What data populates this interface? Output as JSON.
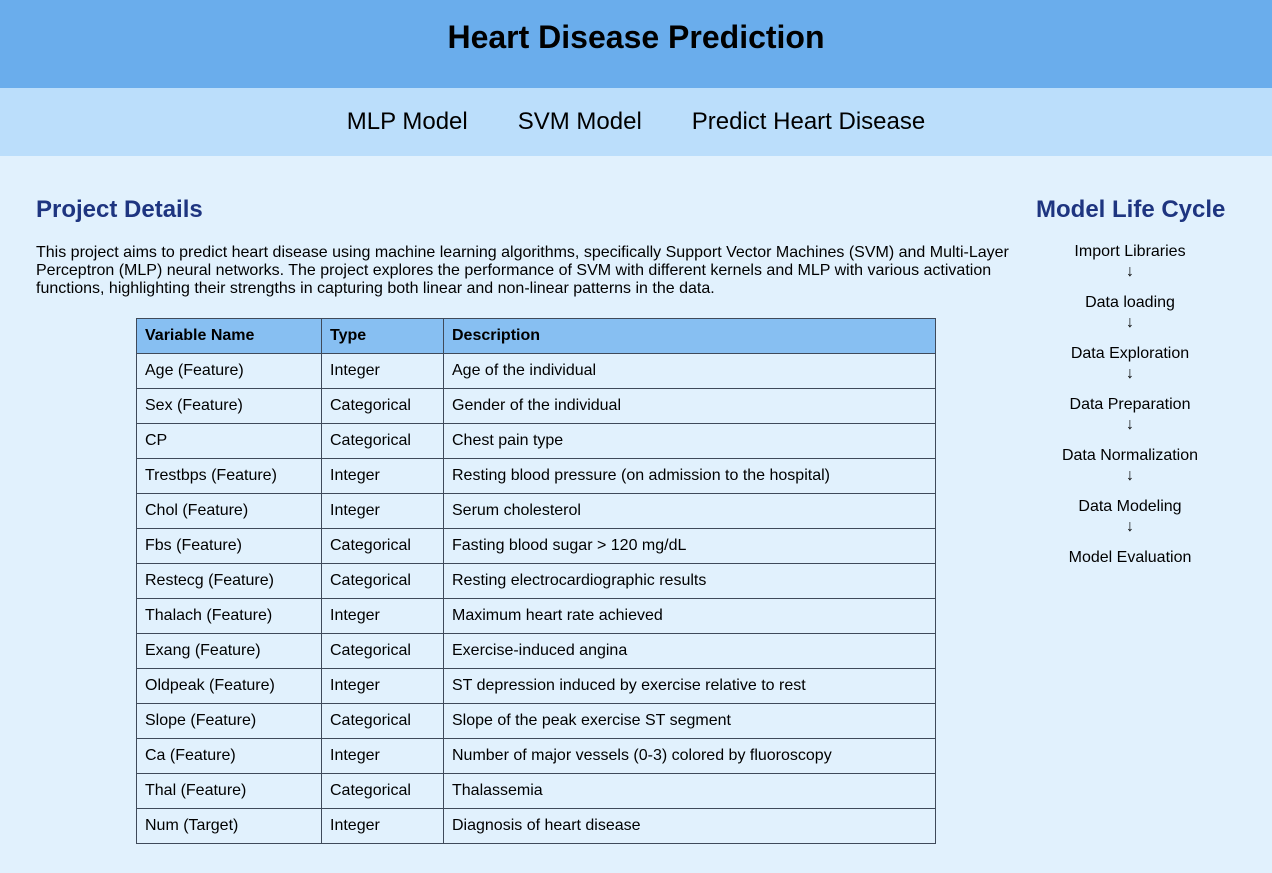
{
  "header": {
    "title": "Heart Disease Prediction"
  },
  "nav": {
    "items": [
      {
        "label": "MLP Model"
      },
      {
        "label": "SVM Model"
      },
      {
        "label": "Predict Heart Disease"
      }
    ]
  },
  "project": {
    "title": "Project Details",
    "description": "This project aims to predict heart disease using machine learning algorithms, specifically Support Vector Machines (SVM) and Multi-Layer Perceptron (MLP) neural networks. The project explores the performance of SVM with different kernels and MLP with various activation functions, highlighting their strengths in capturing both linear and non-linear patterns in the data.",
    "table": {
      "headers": [
        "Variable Name",
        "Type",
        "Description"
      ],
      "rows": [
        [
          "Age (Feature)",
          "Integer",
          "Age of the individual"
        ],
        [
          "Sex (Feature)",
          "Categorical",
          "Gender of the individual"
        ],
        [
          "CP",
          "Categorical",
          "Chest pain type"
        ],
        [
          "Trestbps (Feature)",
          "Integer",
          "Resting blood pressure (on admission to the hospital)"
        ],
        [
          "Chol (Feature)",
          "Integer",
          "Serum cholesterol"
        ],
        [
          "Fbs (Feature)",
          "Categorical",
          "Fasting blood sugar > 120 mg/dL"
        ],
        [
          "Restecg (Feature)",
          "Categorical",
          "Resting electrocardiographic results"
        ],
        [
          "Thalach (Feature)",
          "Integer",
          "Maximum heart rate achieved"
        ],
        [
          "Exang (Feature)",
          "Categorical",
          "Exercise-induced angina"
        ],
        [
          "Oldpeak (Feature)",
          "Integer",
          "ST depression induced by exercise relative to rest"
        ],
        [
          "Slope (Feature)",
          "Categorical",
          "Slope of the peak exercise ST segment"
        ],
        [
          "Ca (Feature)",
          "Integer",
          "Number of major vessels (0-3) colored by fluoroscopy"
        ],
        [
          "Thal (Feature)",
          "Categorical",
          "Thalassemia"
        ],
        [
          "Num (Target)",
          "Integer",
          "Diagnosis of heart disease"
        ]
      ]
    }
  },
  "lifecycle": {
    "title": "Model Life Cycle",
    "arrow": "↓",
    "steps": [
      "Import Libraries",
      "Data loading",
      "Data Exploration",
      "Data Preparation",
      "Data Normalization",
      "Data Modeling",
      "Model Evaluation"
    ]
  },
  "colors": {
    "header_bg": "#6aadec",
    "nav_bg": "#bbdefb",
    "page_bg": "#e1f1fd",
    "table_header_bg": "#87bff2",
    "title_color": "#1e3580"
  }
}
